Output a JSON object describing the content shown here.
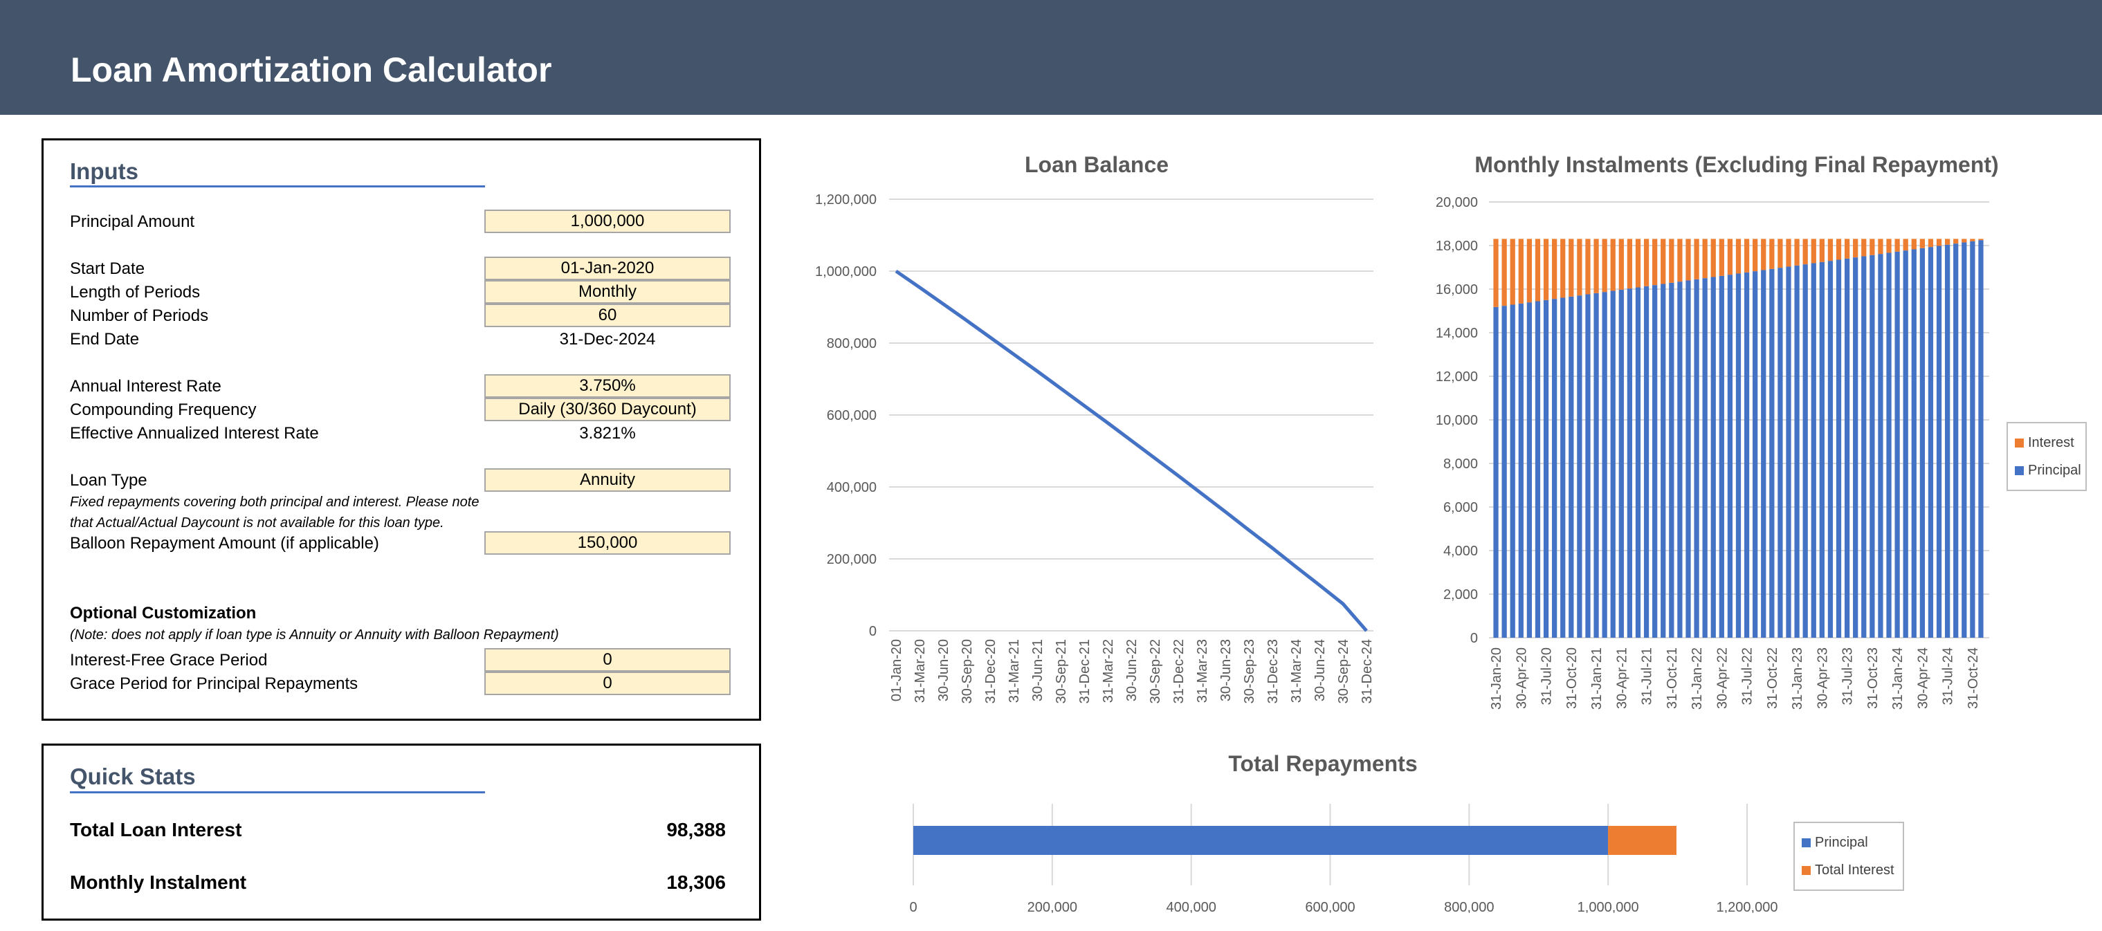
{
  "header": {
    "title": "Loan Amortization Calculator"
  },
  "inputs": {
    "title": "Inputs",
    "principal": {
      "label": "Principal Amount",
      "value": "1,000,000"
    },
    "start_date": {
      "label": "Start Date",
      "value": "01-Jan-2020"
    },
    "period_length": {
      "label": "Length of Periods",
      "value": "Monthly"
    },
    "num_periods": {
      "label": "Number of Periods",
      "value": "60"
    },
    "end_date": {
      "label": "End Date",
      "value": "31-Dec-2024"
    },
    "annual_rate": {
      "label": "Annual Interest Rate",
      "value": "3.750%"
    },
    "compounding": {
      "label": "Compounding Frequency",
      "value": "Daily (30/360 Daycount)"
    },
    "effective_rate": {
      "label": "Effective Annualized Interest Rate",
      "value": "3.821%"
    },
    "loan_type": {
      "label": "Loan Type",
      "value": "Annuity"
    },
    "loan_type_note": "Fixed repayments covering both principal and interest. Please note that Actual/Actual Daycount is not available for this loan type.",
    "balloon": {
      "label": "Balloon Repayment Amount (if applicable)",
      "value": "150,000"
    },
    "optional_title": "Optional Customization",
    "optional_note": "(Note: does not apply if loan type is Annuity or Annuity with Balloon Repayment)",
    "interest_grace": {
      "label": "Interest-Free Grace Period",
      "value": "0"
    },
    "principal_grace": {
      "label": "Grace Period for Principal Repayments",
      "value": "0"
    }
  },
  "quick_stats": {
    "title": "Quick Stats",
    "total_interest": {
      "label": "Total Loan Interest",
      "value": "98,388"
    },
    "monthly_instalment": {
      "label": "Monthly Instalment",
      "value": "18,306"
    }
  },
  "chart_data": [
    {
      "type": "line",
      "title": "Loan Balance",
      "x_tick_labels": [
        "01-Jan-20",
        "31-Mar-20",
        "30-Jun-20",
        "30-Sep-20",
        "31-Dec-20",
        "31-Mar-21",
        "30-Jun-21",
        "30-Sep-21",
        "31-Dec-21",
        "31-Mar-22",
        "30-Jun-22",
        "30-Sep-22",
        "31-Dec-22",
        "31-Mar-23",
        "30-Jun-23",
        "30-Sep-23",
        "31-Dec-23",
        "31-Mar-24",
        "30-Jun-24",
        "30-Sep-24",
        "31-Dec-24"
      ],
      "x": [
        "01-Jan-20",
        "31-Mar-20",
        "30-Jun-20",
        "30-Sep-20",
        "31-Dec-20",
        "31-Mar-21",
        "30-Jun-21",
        "30-Sep-21",
        "31-Dec-21",
        "31-Mar-22",
        "30-Jun-22",
        "30-Sep-22",
        "31-Dec-22",
        "31-Mar-23",
        "30-Jun-23",
        "30-Sep-23",
        "31-Dec-23",
        "31-Mar-24",
        "30-Jun-24",
        "30-Sep-24",
        "31-Dec-24"
      ],
      "y": [
        1000000,
        955000,
        909000,
        863000,
        816000,
        769000,
        722000,
        674000,
        626000,
        578000,
        529000,
        480000,
        431000,
        381000,
        331000,
        280000,
        230000,
        178000,
        127000,
        75000,
        0
      ],
      "y_tick_labels": [
        "0",
        "200,000",
        "400,000",
        "600,000",
        "800,000",
        "1,000,000",
        "1,200,000"
      ],
      "ylim": [
        0,
        1200000
      ],
      "grid": true,
      "color": "#4472c4"
    },
    {
      "type": "bar",
      "stacked": true,
      "title": "Monthly Instalments (Excluding Final Repayment)",
      "x_tick_labels": [
        "31-Jan-20",
        "30-Apr-20",
        "31-Jul-20",
        "31-Oct-20",
        "31-Jan-21",
        "30-Apr-21",
        "31-Jul-21",
        "31-Oct-21",
        "31-Jan-22",
        "30-Apr-22",
        "31-Jul-22",
        "31-Oct-22",
        "31-Jan-23",
        "30-Apr-23",
        "31-Jul-23",
        "31-Oct-23",
        "31-Jan-24",
        "30-Apr-24",
        "31-Jul-24",
        "31-Oct-24"
      ],
      "num_bars": 59,
      "total_per_bar": 18306,
      "principal_start": 15180,
      "principal_end": 18250,
      "y_tick_labels": [
        "0",
        "2,000",
        "4,000",
        "6,000",
        "8,000",
        "10,000",
        "12,000",
        "14,000",
        "16,000",
        "18,000",
        "20,000"
      ],
      "ylim": [
        0,
        20000
      ],
      "legend": [
        {
          "name": "Interest",
          "color": "#ed7d31"
        },
        {
          "name": "Principal",
          "color": "#4472c4"
        }
      ],
      "legend_position": "right"
    },
    {
      "type": "bar",
      "orientation": "horizontal",
      "stacked": true,
      "title": "Total Repayments",
      "series": [
        {
          "name": "Principal",
          "value": 1000000,
          "color": "#4472c4"
        },
        {
          "name": "Total Interest",
          "value": 98388,
          "color": "#ed7d31"
        }
      ],
      "x_tick_labels": [
        "0",
        "200,000",
        "400,000",
        "600,000",
        "800,000",
        "1,000,000",
        "1,200,000"
      ],
      "xlim": [
        0,
        1200000
      ],
      "legend_position": "right"
    }
  ]
}
